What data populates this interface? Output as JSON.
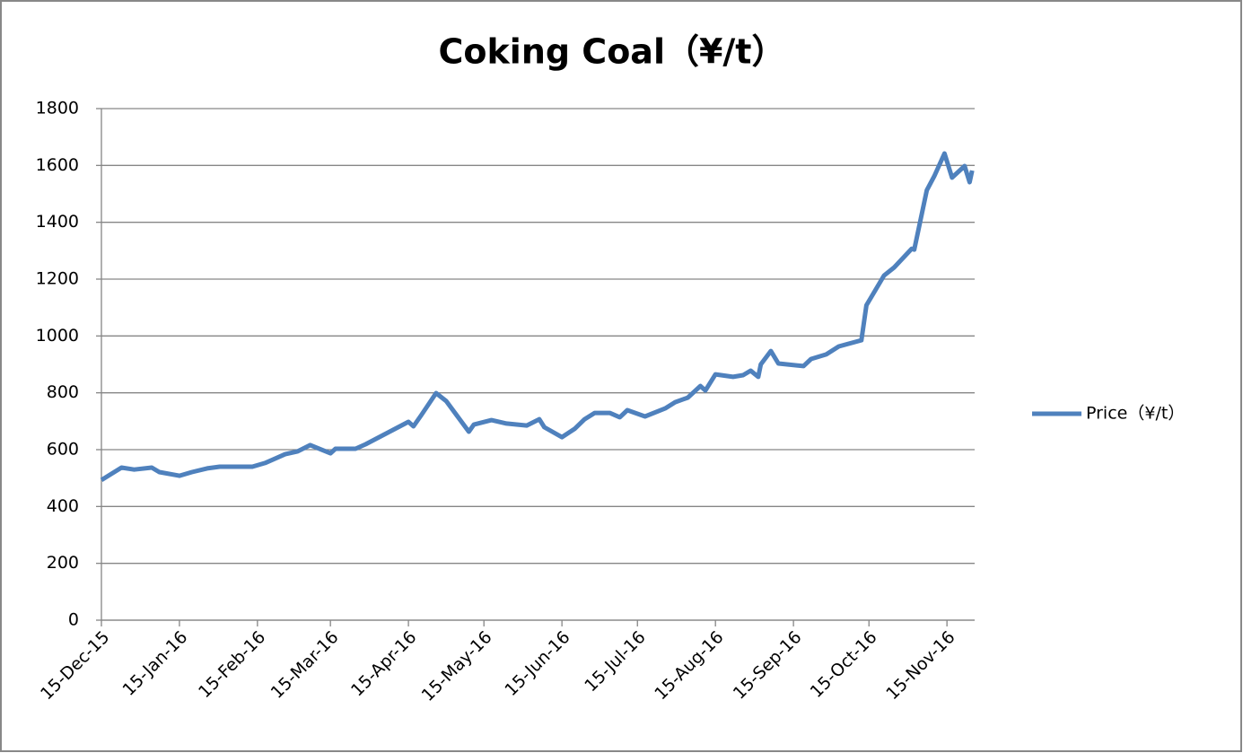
{
  "chart_data": {
    "type": "line",
    "title": "Coking Coal（¥/t）",
    "x": [
      "2015-12-15",
      "2015-12-23",
      "2015-12-28",
      "2016-01-04",
      "2016-01-07",
      "2016-01-15",
      "2016-01-20",
      "2016-01-26",
      "2016-01-31",
      "2016-02-04",
      "2016-02-13",
      "2016-02-18",
      "2016-02-26",
      "2016-03-02",
      "2016-03-07",
      "2016-03-15",
      "2016-03-17",
      "2016-03-25",
      "2016-03-29",
      "2016-04-15",
      "2016-04-17",
      "2016-04-20",
      "2016-04-26",
      "2016-04-30",
      "2016-05-09",
      "2016-05-11",
      "2016-05-18",
      "2016-05-24",
      "2016-06-01",
      "2016-06-06",
      "2016-06-08",
      "2016-06-15",
      "2016-06-20",
      "2016-06-24",
      "2016-06-28",
      "2016-07-04",
      "2016-07-08",
      "2016-07-11",
      "2016-07-18",
      "2016-07-26",
      "2016-07-30",
      "2016-08-04",
      "2016-08-09",
      "2016-08-11",
      "2016-08-15",
      "2016-08-22",
      "2016-08-26",
      "2016-08-29",
      "2016-09-01",
      "2016-09-02",
      "2016-09-06",
      "2016-09-09",
      "2016-09-19",
      "2016-09-22",
      "2016-09-28",
      "2016-10-03",
      "2016-10-12",
      "2016-10-14",
      "2016-10-21",
      "2016-10-25",
      "2016-11-01",
      "2016-11-02",
      "2016-11-07",
      "2016-11-10",
      "2016-11-14",
      "2016-11-17",
      "2016-11-22",
      "2016-11-24",
      "2016-11-25"
    ],
    "series": [
      {
        "name": "Price（¥/t）",
        "color": "#4f81bd",
        "values": [
          493,
          537,
          530,
          537,
          521,
          508,
          521,
          534,
          540,
          540,
          540,
          553,
          584,
          594,
          616,
          587,
          603,
          603,
          619,
          698,
          682,
          720,
          799,
          771,
          663,
          688,
          704,
          692,
          685,
          707,
          679,
          644,
          673,
          707,
          729,
          729,
          714,
          739,
          717,
          745,
          767,
          783,
          824,
          808,
          865,
          856,
          862,
          878,
          856,
          900,
          947,
          903,
          894,
          919,
          935,
          963,
          985,
          1108,
          1213,
          1241,
          1307,
          1304,
          1513,
          1563,
          1642,
          1557,
          1598,
          1541,
          1582
        ]
      }
    ],
    "xlim": [
      "2015-12-15",
      "2016-11-26"
    ],
    "xticks": [
      {
        "value": "2015-12-15",
        "label": "15-Dec-15"
      },
      {
        "value": "2016-01-15",
        "label": "15-Jan-16"
      },
      {
        "value": "2016-02-15",
        "label": "15-Feb-16"
      },
      {
        "value": "2016-03-15",
        "label": "15-Mar-16"
      },
      {
        "value": "2016-04-15",
        "label": "15-Apr-16"
      },
      {
        "value": "2016-05-15",
        "label": "15-May-16"
      },
      {
        "value": "2016-06-15",
        "label": "15-Jun-16"
      },
      {
        "value": "2016-07-15",
        "label": "15-Jul-16"
      },
      {
        "value": "2016-08-15",
        "label": "15-Aug-16"
      },
      {
        "value": "2016-09-15",
        "label": "15-Sep-16"
      },
      {
        "value": "2016-10-15",
        "label": "15-Oct-16"
      },
      {
        "value": "2016-11-15",
        "label": "15-Nov-16"
      }
    ],
    "ylim": [
      0,
      1800
    ],
    "yticks": [
      0,
      200,
      400,
      600,
      800,
      1000,
      1200,
      1400,
      1600,
      1800
    ],
    "grid": true,
    "legend": "right"
  }
}
